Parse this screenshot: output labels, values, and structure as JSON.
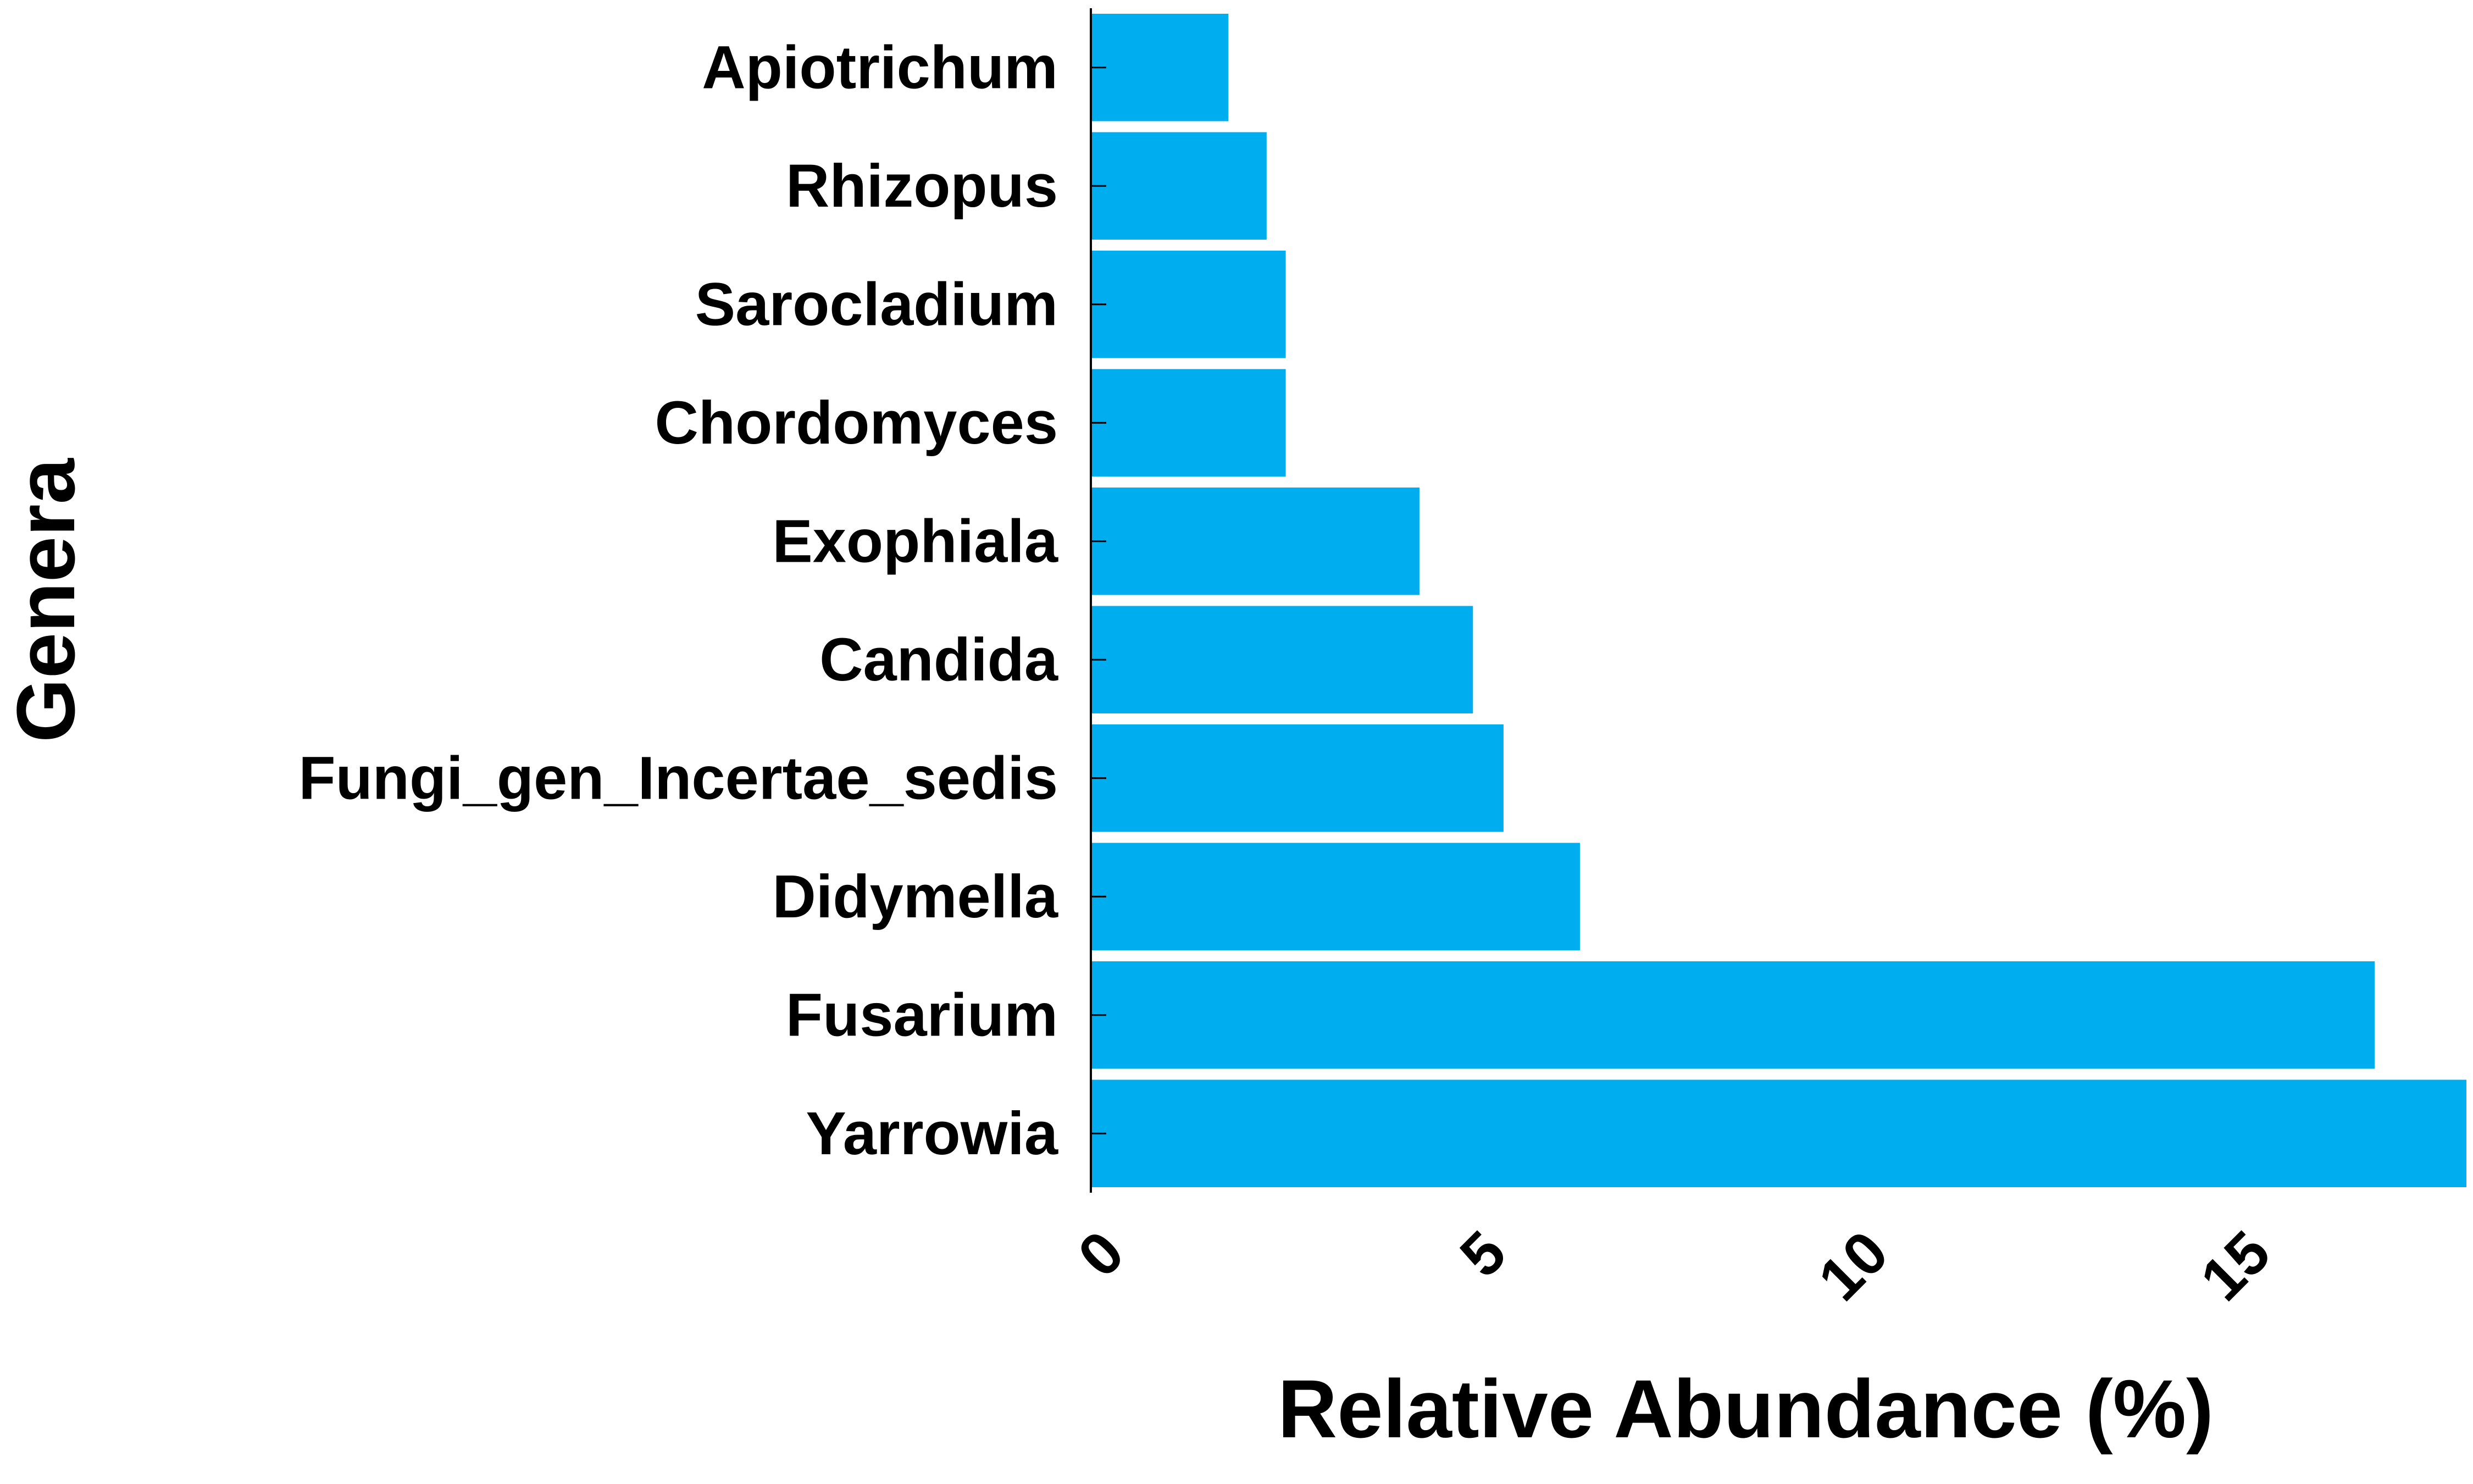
{
  "chart_data": {
    "type": "bar",
    "orientation": "horizontal",
    "categories": [
      "Apiotrichum",
      "Rhizopus",
      "Sarocladium",
      "Chordomyces",
      "Exophiala",
      "Candida",
      "Fungi_gen_Incertae_sedis",
      "Didymella",
      "Fusarium",
      "Yarrowia"
    ],
    "values": [
      1.8,
      2.3,
      2.55,
      2.55,
      4.3,
      5.0,
      5.4,
      6.4,
      16.8,
      18.0
    ],
    "xlabel": "Relative Abundance (%)",
    "ylabel": "Genera",
    "xlim": [
      0,
      18
    ],
    "xticks": [
      0,
      5,
      10,
      15
    ],
    "xtick_labels": [
      "0",
      "5",
      "10",
      "15"
    ],
    "bar_color": "#00AEEF",
    "grid": false
  }
}
